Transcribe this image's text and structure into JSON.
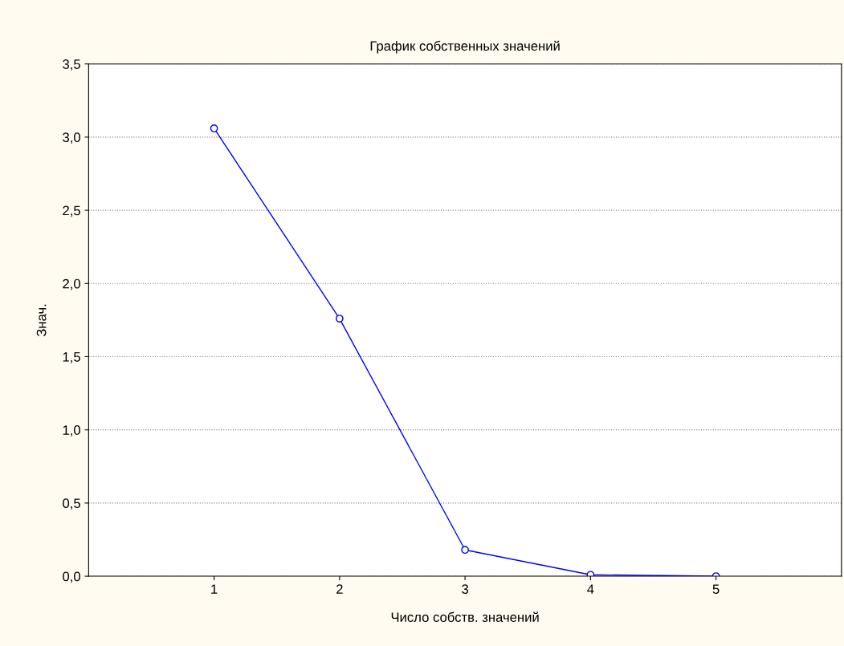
{
  "chart_data": {
    "type": "line",
    "title": "График собственных значений",
    "xlabel": "Число собств. значений",
    "ylabel": "Знач.",
    "x": [
      1,
      2,
      3,
      4,
      5
    ],
    "series": [
      {
        "color": "#0000ff",
        "values": [
          3.06,
          1.76,
          0.18,
          0.01,
          0.0
        ]
      }
    ],
    "xlim": [
      0,
      6
    ],
    "xticks": [
      1,
      2,
      3,
      4,
      5
    ],
    "ylim": [
      0,
      3.5
    ],
    "yticks": [
      {
        "value": 0,
        "label": "0,0"
      },
      {
        "value": 0.5,
        "label": "0,5"
      },
      {
        "value": 1,
        "label": "1,0"
      },
      {
        "value": 1.5,
        "label": "1,5"
      },
      {
        "value": 2,
        "label": "2,0"
      },
      {
        "value": 2.5,
        "label": "2,5"
      },
      {
        "value": 3,
        "label": "3,0"
      },
      {
        "value": 3.5,
        "label": "3,5"
      }
    ],
    "grid": "y",
    "marker": "circle",
    "line_style": "solid"
  }
}
